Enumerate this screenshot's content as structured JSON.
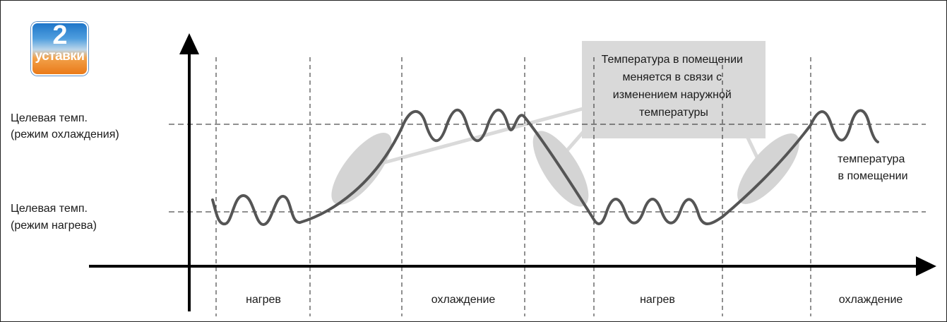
{
  "badge": {
    "number": "2",
    "label": "уставки"
  },
  "levels": {
    "cooling_target": {
      "line1": "Целевая темп.",
      "line2": "(режим охлаждения)"
    },
    "heating_target": {
      "line1": "Целевая темп.",
      "line2": "(режим нагрева)"
    }
  },
  "callout": {
    "lines": [
      "Температура в помещении",
      "меняется в связи с",
      "изменением наружной",
      "температуры"
    ]
  },
  "series_label": {
    "line1": "температура",
    "line2": "в помещении"
  },
  "phases": [
    "нагрев",
    "охлаждение",
    "нагрев",
    "охлаждение"
  ],
  "colors": {
    "curve": "#555555",
    "highlight": "#d4d4d4",
    "callout_box": "#d9d9d9",
    "connector": "#dadada"
  }
}
